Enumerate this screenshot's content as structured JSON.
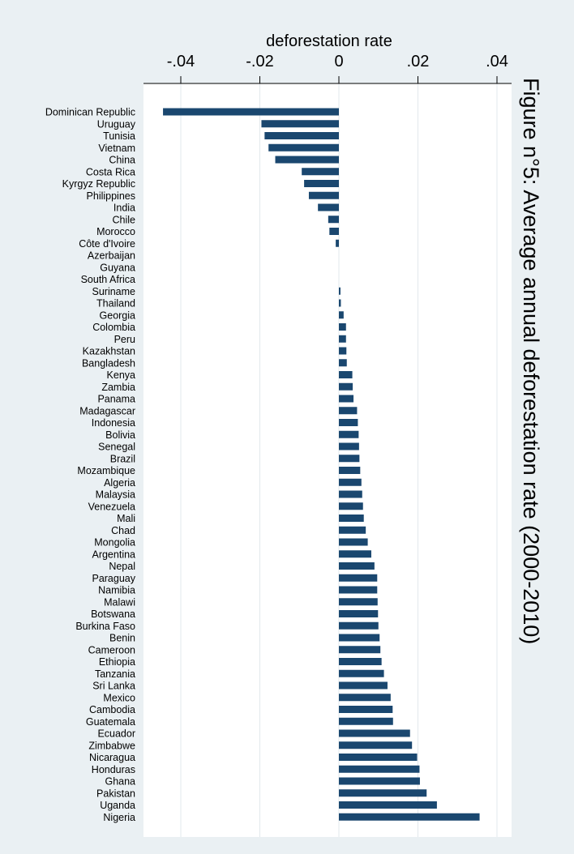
{
  "chart_data": {
    "type": "bar",
    "orientation": "horizontal",
    "title": "Figure n°5: Average annual deforestation rate (2000-2010)",
    "xlabel": "deforestation rate",
    "xlim": [
      -0.048,
      0.044
    ],
    "xticks": [
      -0.04,
      -0.02,
      0,
      0.02,
      0.04
    ],
    "xtick_labels": [
      "-.04",
      "-.02",
      "0",
      ".02",
      ".04"
    ],
    "axis_position": "top",
    "grid": true,
    "bar_color": "#1a476f",
    "categories": [
      "Dominican Republic",
      "Uruguay",
      "Tunisia",
      "Vietnam",
      "China",
      "Costa Rica",
      "Kyrgyz Republic",
      "Philippines",
      "India",
      "Chile",
      "Morocco",
      "Côte d'Ivoire",
      "Azerbaijan",
      "Guyana",
      "South Africa",
      "Suriname",
      "Thailand",
      "Georgia",
      "Colombia",
      "Peru",
      "Kazakhstan",
      "Bangladesh",
      "Kenya",
      "Zambia",
      "Panama",
      "Madagascar",
      "Indonesia",
      "Bolivia",
      "Senegal",
      "Brazil",
      "Mozambique",
      "Algeria",
      "Malaysia",
      "Venezuela",
      "Mali",
      "Chad",
      "Mongolia",
      "Argentina",
      "Nepal",
      "Paraguay",
      "Namibia",
      "Malawi",
      "Botswana",
      "Burkina Faso",
      "Benin",
      "Cameroon",
      "Ethiopia",
      "Tanzania",
      "Sri Lanka",
      "Mexico",
      "Cambodia",
      "Guatemala",
      "Ecuador",
      "Zimbabwe",
      "Nicaragua",
      "Honduras",
      "Ghana",
      "Pakistan",
      "Uganda",
      "Nigeria"
    ],
    "values": [
      -0.0445,
      -0.0196,
      -0.0188,
      -0.0178,
      -0.0161,
      -0.0094,
      -0.0088,
      -0.0076,
      -0.0053,
      -0.0027,
      -0.0024,
      -0.0008,
      0.0,
      0.0,
      0.0,
      0.0004,
      0.0005,
      0.0012,
      0.0018,
      0.0018,
      0.0019,
      0.002,
      0.0034,
      0.0035,
      0.0037,
      0.0046,
      0.0048,
      0.005,
      0.0051,
      0.0052,
      0.0054,
      0.0057,
      0.0059,
      0.0061,
      0.0063,
      0.0068,
      0.0073,
      0.0082,
      0.009,
      0.0097,
      0.0097,
      0.0098,
      0.0099,
      0.01,
      0.0103,
      0.0105,
      0.0108,
      0.0114,
      0.0123,
      0.0131,
      0.0136,
      0.0137,
      0.018,
      0.0185,
      0.0198,
      0.0204,
      0.0205,
      0.0222,
      0.0248,
      0.0356
    ]
  }
}
